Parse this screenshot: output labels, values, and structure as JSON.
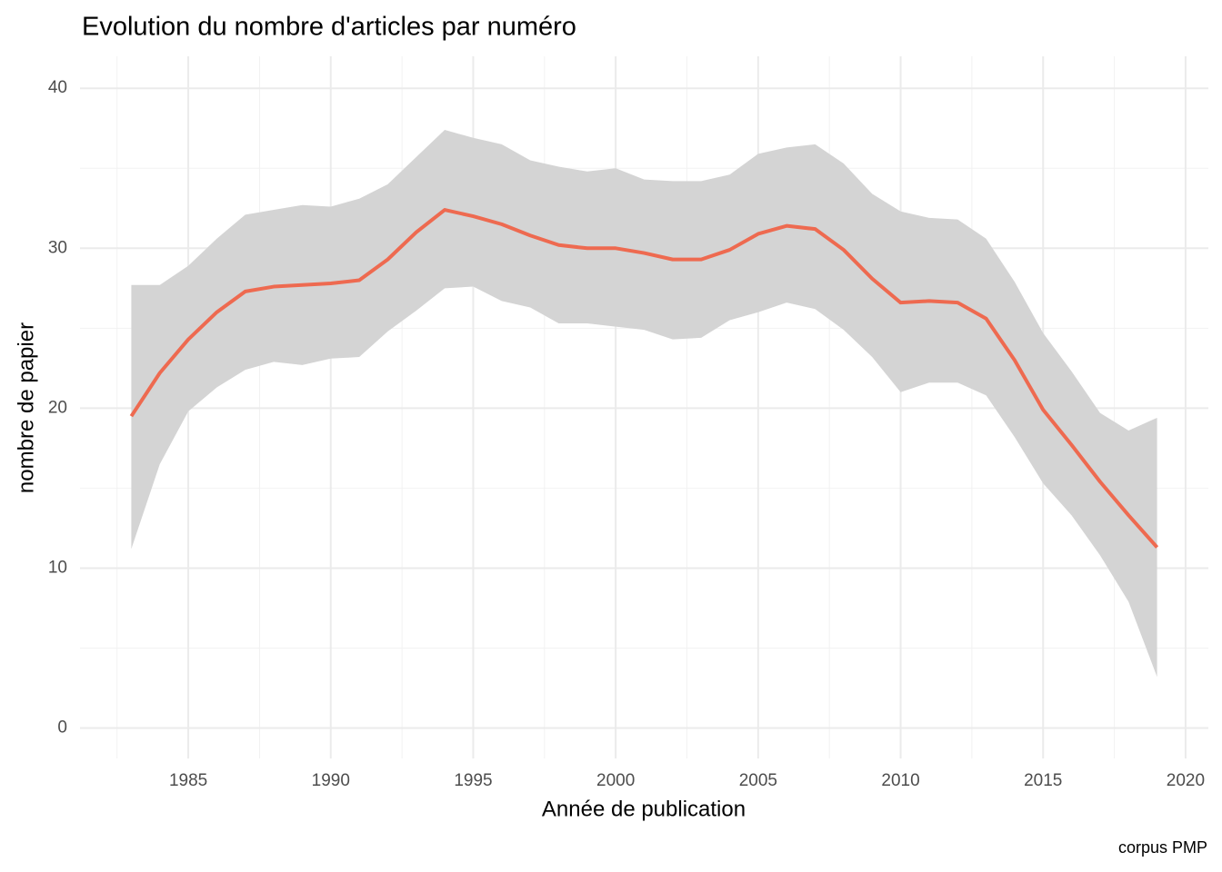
{
  "chart_data": {
    "type": "line",
    "title": "Evolution du nombre d'articles par numéro",
    "x_label": "Année de publication",
    "y_label": "nombre de papier",
    "caption": "corpus PMP",
    "x": [
      1983,
      1984,
      1985,
      1986,
      1987,
      1988,
      1989,
      1990,
      1991,
      1992,
      1993,
      1994,
      1995,
      1996,
      1997,
      1998,
      1999,
      2000,
      2001,
      2002,
      2003,
      2004,
      2005,
      2006,
      2007,
      2008,
      2009,
      2010,
      2011,
      2012,
      2013,
      2014,
      2015,
      2016,
      2017,
      2018,
      2019
    ],
    "series": [
      {
        "color": "#ee6a50",
        "band_color": "#d4d4d4",
        "values": [
          19.5,
          22.2,
          24.3,
          26.0,
          27.3,
          27.6,
          27.7,
          27.8,
          28.0,
          29.3,
          31.0,
          32.4,
          32.0,
          31.5,
          30.8,
          30.2,
          30.0,
          30.0,
          29.7,
          29.3,
          29.3,
          29.9,
          30.9,
          31.4,
          31.2,
          29.9,
          28.1,
          26.6,
          26.7,
          26.6,
          25.6,
          23.0,
          19.9,
          17.7,
          15.4,
          13.3,
          11.3
        ],
        "upper": [
          27.7,
          27.7,
          28.9,
          30.6,
          32.1,
          32.4,
          32.7,
          32.6,
          33.1,
          34.0,
          35.7,
          37.4,
          36.9,
          36.5,
          35.5,
          35.1,
          34.8,
          35.0,
          34.3,
          34.2,
          34.2,
          34.6,
          35.9,
          36.3,
          36.5,
          35.3,
          33.4,
          32.3,
          31.9,
          31.8,
          30.6,
          27.9,
          24.7,
          22.3,
          19.7,
          18.6,
          19.4
        ],
        "lower": [
          11.2,
          16.5,
          19.8,
          21.3,
          22.4,
          22.9,
          22.7,
          23.1,
          23.2,
          24.8,
          26.1,
          27.5,
          27.6,
          26.7,
          26.3,
          25.3,
          25.3,
          25.1,
          24.9,
          24.3,
          24.4,
          25.5,
          26.0,
          26.6,
          26.2,
          24.9,
          23.2,
          21.0,
          21.6,
          21.6,
          20.8,
          18.2,
          15.3,
          13.3,
          10.8,
          7.9,
          3.2
        ]
      }
    ],
    "xlim": [
      1981.2,
      2020.8
    ],
    "xticks": [
      1985,
      1990,
      1995,
      2000,
      2005,
      2010,
      2015,
      2020
    ],
    "ylim": [
      -1.9,
      42
    ],
    "yticks": [
      0,
      10,
      20,
      30,
      40
    ],
    "grid": true,
    "minor_grid": true
  }
}
